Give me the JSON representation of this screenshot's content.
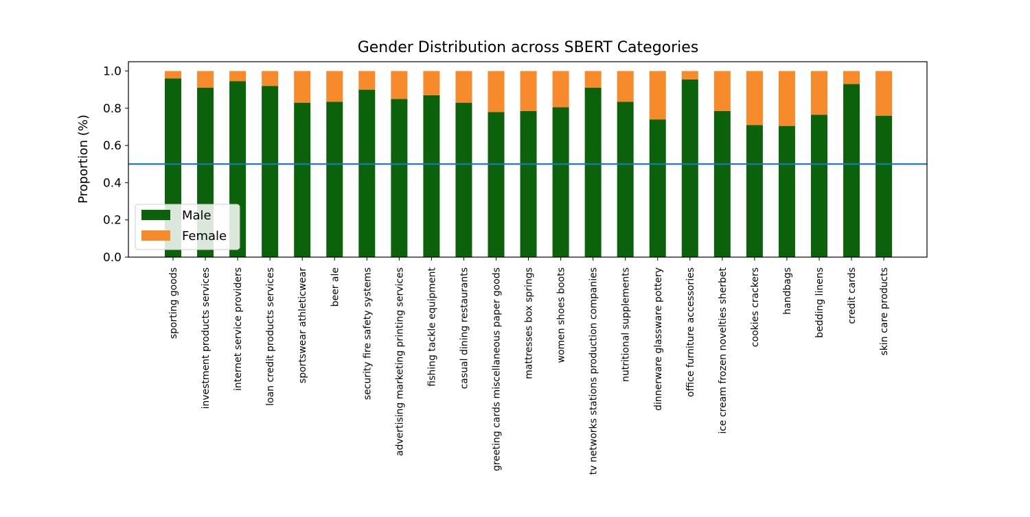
{
  "chart_data": {
    "type": "bar",
    "stacked": true,
    "title": "Gender Distribution across SBERT Categories",
    "xlabel": "",
    "ylabel": "Proportion (%)",
    "ylim": [
      0,
      1.05
    ],
    "yticks": [
      "0.0",
      "0.2",
      "0.4",
      "0.6",
      "0.8",
      "1.0"
    ],
    "reference_line": {
      "y": 0.5,
      "color": "#1f77b4"
    },
    "legend": {
      "position": "lower-left"
    },
    "categories": [
      "sporting goods",
      "investment products services",
      "internet service providers",
      "loan credit products services",
      "sportswear athleticwear",
      "beer ale",
      "security fire safety systems",
      "advertising marketing printing services",
      "fishing tackle equipment",
      "casual dining restaurants",
      "greeting cards miscellaneous paper goods",
      "mattresses box springs",
      "women shoes boots",
      "tv networks stations production companies",
      "nutritional supplements",
      "dinnerware glassware pottery",
      "office furniture accessories",
      "ice cream frozen novelties sherbet",
      "cookies crackers",
      "handbags",
      "bedding linens",
      "credit cards",
      "skin care products"
    ],
    "series": [
      {
        "name": "Male",
        "color": "#0b620b",
        "values": [
          0.96,
          0.91,
          0.945,
          0.92,
          0.83,
          0.835,
          0.9,
          0.85,
          0.87,
          0.83,
          0.78,
          0.785,
          0.805,
          0.91,
          0.835,
          0.74,
          0.955,
          0.785,
          0.71,
          0.705,
          0.765,
          0.93,
          0.76
        ]
      },
      {
        "name": "Female",
        "color": "#f78a2a",
        "values": [
          0.04,
          0.09,
          0.055,
          0.08,
          0.17,
          0.165,
          0.1,
          0.15,
          0.13,
          0.17,
          0.22,
          0.215,
          0.195,
          0.09,
          0.165,
          0.26,
          0.045,
          0.215,
          0.29,
          0.295,
          0.235,
          0.07,
          0.24
        ]
      }
    ]
  }
}
